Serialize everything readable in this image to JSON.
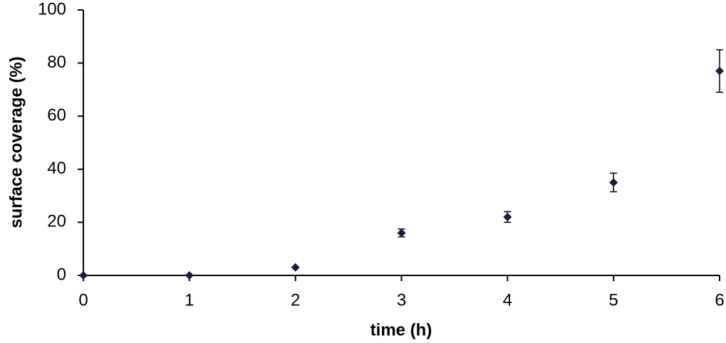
{
  "chart_data": {
    "type": "scatter",
    "xlabel": "time (h)",
    "ylabel": "surface coverage (%)",
    "series": [
      {
        "color": "#1a1a3a",
        "x": [
          0,
          1,
          2,
          3,
          4,
          5,
          6
        ],
        "values": [
          0,
          0,
          3,
          16,
          22,
          35,
          77
        ],
        "errors": [
          0,
          0,
          0,
          1.5,
          2,
          3.5,
          8
        ]
      }
    ],
    "xlim": [
      0,
      6
    ],
    "xticks": [
      0,
      1,
      2,
      3,
      4,
      5,
      6
    ],
    "ylim": [
      0,
      100
    ],
    "yticks": [
      0,
      20,
      40,
      60,
      80,
      100
    ],
    "grid": false
  }
}
